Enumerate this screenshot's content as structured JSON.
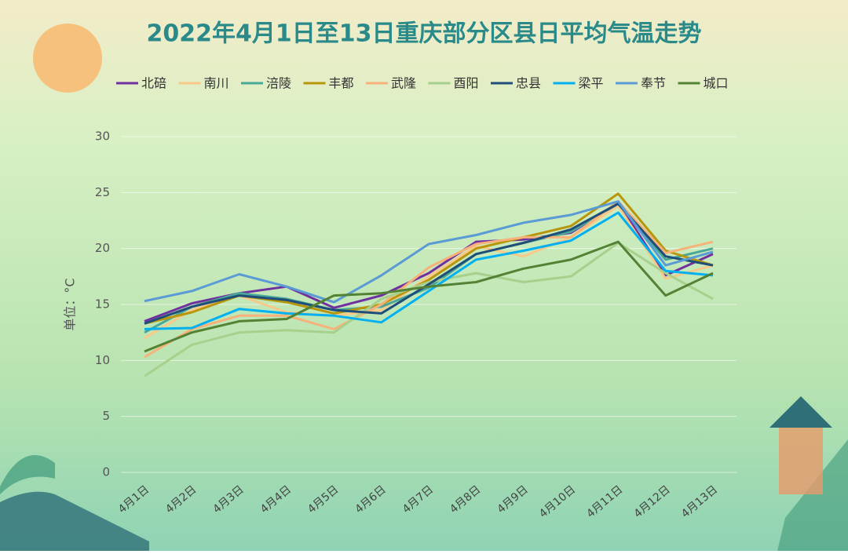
{
  "chart_data": {
    "type": "line",
    "title": "2022年4月1日至13日重庆部分区县日平均气温走势",
    "y_label": "单位：°C",
    "categories": [
      "4月1日",
      "4月2日",
      "4月3日",
      "4月4日",
      "4月5日",
      "4月6日",
      "4月7日",
      "4月8日",
      "4月9日",
      "4月10日",
      "4月11日",
      "4月12日",
      "4月13日"
    ],
    "series": [
      {
        "name": "北碚",
        "color": "#7030a0",
        "values": [
          13.5,
          15.1,
          16.0,
          16.6,
          14.7,
          15.8,
          17.8,
          20.6,
          20.8,
          21.4,
          24.1,
          17.6,
          19.5
        ]
      },
      {
        "name": "南川",
        "color": "#f9c98a",
        "values": [
          12.0,
          14.5,
          15.8,
          14.3,
          14.0,
          14.5,
          17.5,
          20.2,
          19.3,
          21.0,
          23.8,
          17.3,
          18.5
        ]
      },
      {
        "name": "涪陵",
        "color": "#4aa89a",
        "values": [
          12.5,
          14.8,
          16.0,
          15.5,
          14.5,
          14.8,
          16.5,
          19.5,
          20.5,
          21.5,
          24.0,
          19.0,
          20.0
        ]
      },
      {
        "name": "丰都",
        "color": "#b8960c",
        "values": [
          13.3,
          14.3,
          15.8,
          15.2,
          14.2,
          15.0,
          17.2,
          20.0,
          21.0,
          22.0,
          24.9,
          19.8,
          18.5
        ]
      },
      {
        "name": "武隆",
        "color": "#f7b27a",
        "values": [
          10.3,
          12.8,
          14.0,
          14.0,
          12.8,
          15.0,
          18.3,
          20.4,
          21.0,
          21.0,
          24.2,
          19.6,
          20.6
        ]
      },
      {
        "name": "酉阳",
        "color": "#a8d08d",
        "values": [
          8.6,
          11.4,
          12.5,
          12.7,
          12.5,
          15.5,
          17.0,
          17.8,
          17.0,
          17.5,
          20.5,
          17.8,
          15.5
        ]
      },
      {
        "name": "忠县",
        "color": "#1f4e79",
        "values": [
          13.3,
          14.8,
          15.8,
          15.4,
          14.5,
          14.2,
          16.8,
          19.5,
          20.5,
          21.7,
          24.0,
          19.3,
          18.5
        ]
      },
      {
        "name": "梁平",
        "color": "#00b0f0",
        "values": [
          12.8,
          12.9,
          14.6,
          14.2,
          14.0,
          13.4,
          16.2,
          19.0,
          19.8,
          20.7,
          23.2,
          18.0,
          17.6
        ]
      },
      {
        "name": "奉节",
        "color": "#5b9bd5",
        "values": [
          15.3,
          16.2,
          17.7,
          16.6,
          15.2,
          17.6,
          20.4,
          21.2,
          22.3,
          23.0,
          24.2,
          18.5,
          19.7
        ]
      },
      {
        "name": "城口",
        "color": "#548235",
        "values": [
          10.8,
          12.5,
          13.5,
          13.7,
          15.8,
          16.0,
          16.6,
          17.0,
          18.2,
          19.0,
          20.6,
          15.8,
          17.8
        ]
      }
    ],
    "ylim": [
      0,
      30
    ],
    "yticks": [
      0,
      5,
      10,
      15,
      20,
      25,
      30
    ],
    "grid": true
  }
}
